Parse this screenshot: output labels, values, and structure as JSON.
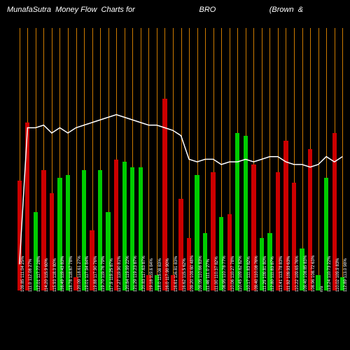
{
  "title": {
    "prefix": "MunafaSutra  Money Flow  Charts for",
    "ticker": "BRO",
    "suffix": "(Brown  &"
  },
  "chart": {
    "type": "bar+line",
    "background_color": "#000000",
    "gridline_color": "#cc7a00",
    "line_color": "#ffffff",
    "title_color": "#ffffff",
    "title_fontsize": 11,
    "label_color": "#ffffff",
    "label_fontsize": 6,
    "bar_colors": {
      "up": "#00cc00",
      "down": "#cc0000"
    },
    "y_max": 100,
    "line_y_max": 100,
    "bars": [
      {
        "h": 42,
        "c": "down",
        "label": "109.85 111.04 25%"
      },
      {
        "h": 64,
        "c": "down",
        "label": "111.0 112.08 27%"
      },
      {
        "h": 30,
        "c": "up",
        "label": "112.01 117.77 28%"
      },
      {
        "h": 46,
        "c": "down",
        "label": "114.20 115.9 60%"
      },
      {
        "h": 37,
        "c": "down",
        "label": "115.93 118.0 80%"
      },
      {
        "h": 43,
        "c": "up",
        "label": "116.49 119.43 83%"
      },
      {
        "h": 44,
        "c": "up",
        "label": "118.78 118.67 78%"
      },
      {
        "h": 5,
        "c": "down",
        "label": "120.09 118.61 27%"
      },
      {
        "h": 46,
        "c": "up",
        "label": "119.01 117.94 84%"
      },
      {
        "h": 23,
        "c": "down",
        "label": "119.88 117.90 76%"
      },
      {
        "h": 46,
        "c": "up",
        "label": "119.70 119.76 79%"
      },
      {
        "h": 30,
        "c": "up",
        "label": "117.9 119.25 87%"
      },
      {
        "h": 50,
        "c": "down",
        "label": "117.27 119.90 81%"
      },
      {
        "h": 49,
        "c": "up",
        "label": "120.84 119.99 22%"
      },
      {
        "h": 47,
        "c": "up",
        "label": "121.29 119.23 87%"
      },
      {
        "h": 47,
        "c": "up",
        "label": "120.83 117.63 87%"
      },
      {
        "h": 6,
        "c": "down",
        "label": "119.18 119.6 84%"
      },
      {
        "h": 6,
        "c": "up",
        "label": "118.0 119.08 83%"
      },
      {
        "h": 73,
        "c": "down",
        "label": "116.0 117.90 90%"
      },
      {
        "h": 6,
        "c": "down",
        "label": "116.61 116.81 83%"
      },
      {
        "h": 35,
        "c": "down",
        "label": "116.62 115.5 62%"
      },
      {
        "h": 20,
        "c": "down",
        "label": "109.20 109.60 48%"
      },
      {
        "h": 44,
        "c": "up",
        "label": "109.05 110.66 83%"
      },
      {
        "h": 22,
        "c": "up",
        "label": "111.46 111.0 27%"
      },
      {
        "h": 45,
        "c": "down",
        "label": "111.00 110.37 82%"
      },
      {
        "h": 28,
        "c": "up",
        "label": "108.95 110.78 77%"
      },
      {
        "h": 29,
        "c": "down",
        "label": "110.06 110.27 78%"
      },
      {
        "h": 60,
        "c": "up",
        "label": "110.45 109.62 82%"
      },
      {
        "h": 59,
        "c": "up",
        "label": "110.17 111.83 82%"
      },
      {
        "h": 48,
        "c": "down",
        "label": "109.40 110.08 76%"
      },
      {
        "h": 20,
        "c": "up",
        "label": "111.29 109.81 80%"
      },
      {
        "h": 22,
        "c": "up",
        "label": "112.80 111.83 87%"
      },
      {
        "h": 45,
        "c": "down",
        "label": "113.41 113.78 83%"
      },
      {
        "h": 57,
        "c": "down",
        "label": "111.92 109.93 63%"
      },
      {
        "h": 41,
        "c": "down",
        "label": "110.22 109.65 76%"
      },
      {
        "h": 16,
        "c": "up",
        "label": "109.40 108.85 83%"
      },
      {
        "h": 54,
        "c": "down",
        "label": "108.96 108.72 63%"
      },
      {
        "h": 6,
        "c": "up",
        "label": "n/a"
      },
      {
        "h": 43,
        "c": "up",
        "label": "113.24 110.73 22%"
      },
      {
        "h": 60,
        "c": "down",
        "label": "110.02 109.9 83%"
      },
      {
        "h": 5,
        "c": "up",
        "label": "112.89 113.0 98%"
      }
    ],
    "line_values": [
      10,
      62,
      62,
      63,
      60,
      62,
      60,
      62,
      63,
      64,
      65,
      66,
      67,
      66,
      65,
      64,
      63,
      63,
      62,
      61,
      59,
      50,
      49,
      50,
      50,
      48,
      49,
      49,
      50,
      49,
      50,
      51,
      51,
      49,
      48,
      48,
      47,
      48,
      51,
      49,
      51
    ]
  }
}
